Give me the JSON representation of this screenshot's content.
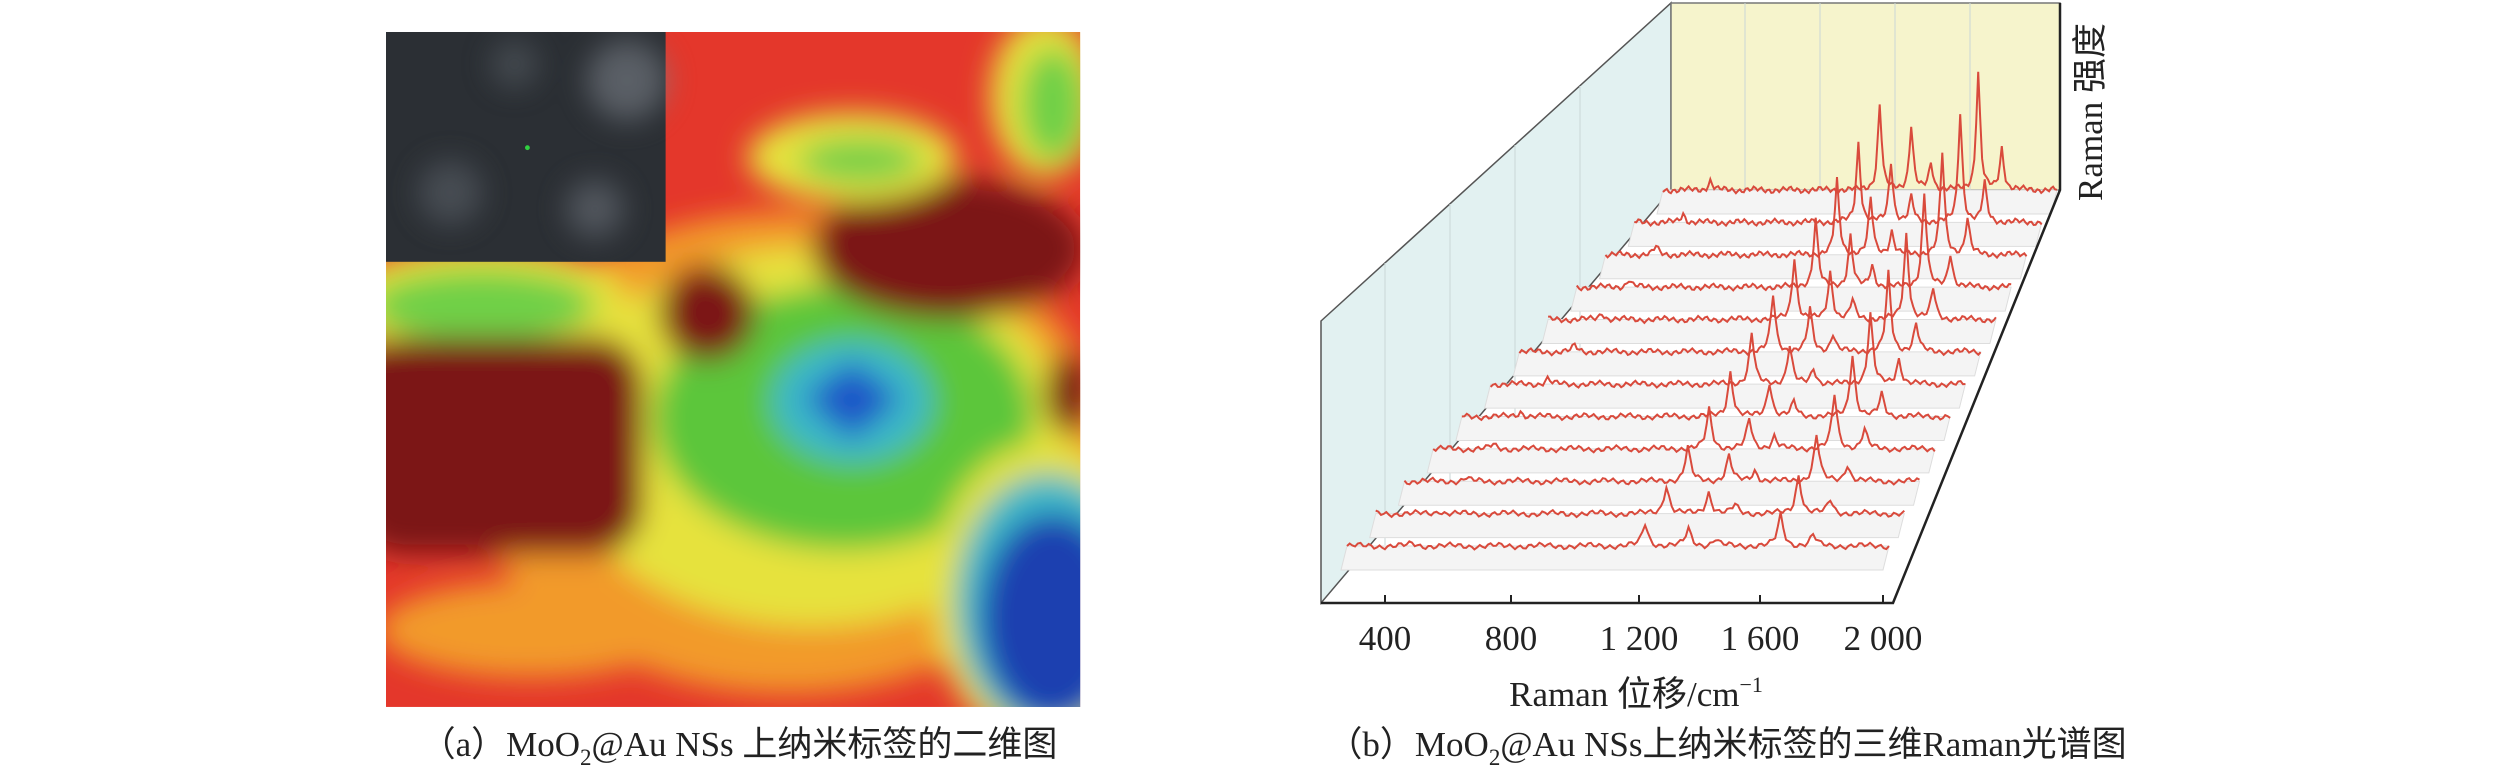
{
  "panel_a": {
    "caption": {
      "label": "（a）",
      "text_before": "MoO",
      "subscript": "2",
      "text_after": "@Au NSs 上纳米标签的二维图"
    }
  },
  "panel_b": {
    "x_tick_labels": [
      "400",
      "800",
      "1 200",
      "1 600",
      "2 000"
    ],
    "x_axis_label": {
      "text": "Raman 位移/cm",
      "superscript": "−1"
    },
    "y_axis_label": "Raman 强度",
    "caption": {
      "label": "（b）",
      "text_before": "MoO",
      "subscript": "2",
      "text_after": "@Au NSs上纳米标签的三维Raman光谱图"
    }
  }
}
